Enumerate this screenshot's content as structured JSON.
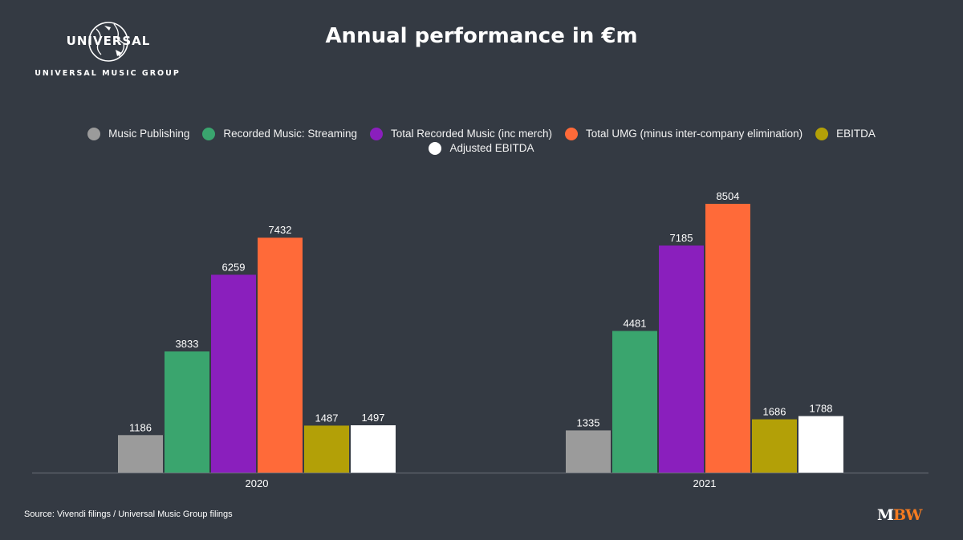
{
  "logo": {
    "wordmark": "UNIVERSAL",
    "subtitle": "UNIVERSAL MUSIC GROUP"
  },
  "footer": {
    "source": "Source: Vivendi filings / Universal Music Group filings",
    "brand_m": "M",
    "brand_bw": "BW"
  },
  "chart_data": {
    "type": "bar",
    "title": "Annual performance in €m",
    "categories": [
      "2020",
      "2021"
    ],
    "series": [
      {
        "name": "Music Publishing",
        "color": "#9b9b9b",
        "values": [
          1186,
          1335
        ]
      },
      {
        "name": "Recorded Music: Streaming",
        "color": "#3aa56e",
        "values": [
          3833,
          4481
        ]
      },
      {
        "name": "Total Recorded Music (inc merch)",
        "color": "#8a1fbd",
        "values": [
          6259,
          7185
        ]
      },
      {
        "name": "Total UMG (minus inter-company elimination)",
        "color": "#ff6a39",
        "values": [
          7432,
          8504
        ]
      },
      {
        "name": "EBITDA",
        "color": "#b3a007",
        "values": [
          1487,
          1686
        ]
      },
      {
        "name": "Adjusted EBITDA",
        "color": "#ffffff",
        "values": [
          1497,
          1788
        ]
      }
    ],
    "xlabel": "",
    "ylabel": "",
    "ylim": [
      0,
      8504
    ],
    "grid": false,
    "legend_position": "top",
    "background": "#343a43",
    "axis_color": "#6b7079",
    "label_color": "#ffffff"
  }
}
